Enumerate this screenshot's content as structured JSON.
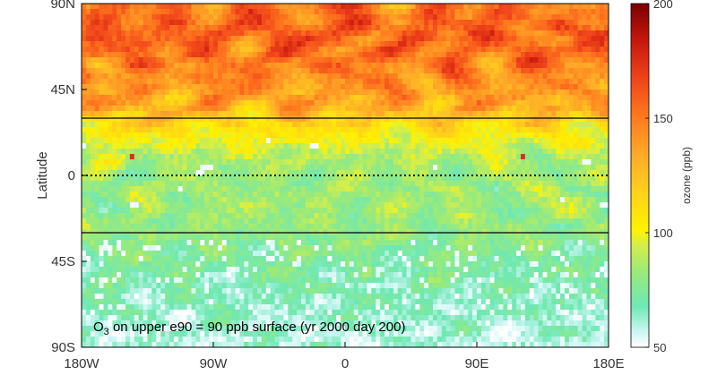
{
  "chart_data": {
    "type": "heatmap",
    "title": "",
    "annotation": "O3 on upper e90 = 90 ppb surface (yr 2000 day 200)",
    "annotation_parts": {
      "main": "O",
      "subscript": "3",
      "rest": " on upper e90 = 90 ppb surface (yr 2000 day 200)"
    },
    "xlabel": "",
    "ylabel": "Latitude",
    "xlim": [
      -180,
      180
    ],
    "ylim": [
      -90,
      90
    ],
    "x_ticks": [
      {
        "value": -180,
        "label": "180W"
      },
      {
        "value": -90,
        "label": "90W"
      },
      {
        "value": 0,
        "label": "0"
      },
      {
        "value": 90,
        "label": "90E"
      },
      {
        "value": 180,
        "label": "180E"
      }
    ],
    "y_ticks": [
      {
        "value": 90,
        "label": "90N"
      },
      {
        "value": 45,
        "label": "45N"
      },
      {
        "value": 0,
        "label": "0"
      },
      {
        "value": -45,
        "label": "45S"
      },
      {
        "value": -90,
        "label": "90S"
      }
    ],
    "reference_lines": [
      {
        "latitude": 30,
        "style": "solid"
      },
      {
        "latitude": 0,
        "style": "dotted"
      },
      {
        "latitude": -30,
        "style": "solid"
      }
    ],
    "colorbar": {
      "label": "ozone (ppb)",
      "range": [
        50,
        200
      ],
      "ticks": [
        {
          "value": 200,
          "label": "200"
        },
        {
          "value": 150,
          "label": "150"
        },
        {
          "value": 100,
          "label": "100"
        },
        {
          "value": 50,
          "label": "50"
        }
      ]
    },
    "latitude_band_profile": [
      {
        "lat": 90,
        "ozone_ppb": 150
      },
      {
        "lat": 75,
        "ozone_ppb": 158
      },
      {
        "lat": 60,
        "ozone_ppb": 150
      },
      {
        "lat": 45,
        "ozone_ppb": 140
      },
      {
        "lat": 35,
        "ozone_ppb": 132
      },
      {
        "lat": 30,
        "ozone_ppb": 118
      },
      {
        "lat": 20,
        "ozone_ppb": 102
      },
      {
        "lat": 10,
        "ozone_ppb": 88
      },
      {
        "lat": 0,
        "ozone_ppb": 82
      },
      {
        "lat": -15,
        "ozone_ppb": 84
      },
      {
        "lat": -30,
        "ozone_ppb": 80
      },
      {
        "lat": -45,
        "ozone_ppb": 74
      },
      {
        "lat": -60,
        "ozone_ppb": 68
      },
      {
        "lat": -75,
        "ozone_ppb": 64
      },
      {
        "lat": -90,
        "ozone_ppb": 60
      }
    ]
  }
}
